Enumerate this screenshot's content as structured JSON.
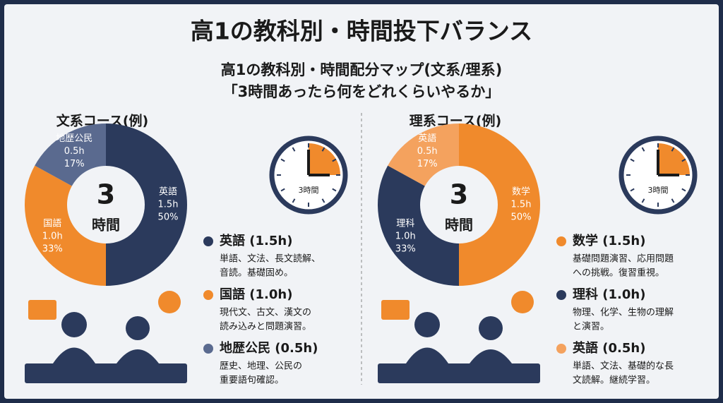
{
  "header": {
    "title": "高1の教科別・時間投下バランス",
    "subtitle_lines": [
      "高1の教科別・時間配分マップ(文系/理系)",
      "「3時間あったら何をどれくらいやるか」"
    ]
  },
  "chart_data": [
    {
      "type": "pie",
      "title": "文系コース(例)",
      "categories": [
        "英語",
        "国語",
        "地歴公民"
      ],
      "values": [
        50,
        33,
        17
      ],
      "value_labels": [
        "50%",
        "33%",
        "17%"
      ],
      "hours": [
        1.5,
        1.0,
        0.5
      ],
      "hours_labels": [
        "1.5h",
        "1.0h",
        "0.5h"
      ],
      "colors": [
        "#2b3a5c",
        "#f08a2c",
        "#5a6a8f"
      ],
      "center_value": 3,
      "center_unit": "時間",
      "clock_label": "3時間",
      "legend": [
        {
          "label": "英語 (1.5h)",
          "lines": [
            "単語、文法、長文読解、",
            "音読。基礎固め。"
          ]
        },
        {
          "label": "国語 (1.0h)",
          "lines": [
            "現代文、古文、漢文の",
            "読み込みと問題演習。"
          ]
        },
        {
          "label": "地歴公民 (0.5h)",
          "lines": [
            "歴史、地理、公民の",
            "重要語句確認。"
          ]
        }
      ]
    },
    {
      "type": "pie",
      "title": "理系コース(例)",
      "categories": [
        "数学",
        "理科",
        "英語"
      ],
      "values": [
        50,
        33,
        17
      ],
      "value_labels": [
        "50%",
        "33%",
        "17%"
      ],
      "hours": [
        1.5,
        1.0,
        0.5
      ],
      "hours_labels": [
        "1.5h",
        "1.0h",
        "0.5h"
      ],
      "colors": [
        "#f08a2c",
        "#2b3a5c",
        "#f4a25e"
      ],
      "center_value": 3,
      "center_unit": "時間",
      "clock_label": "3時間",
      "legend": [
        {
          "label": "数学 (1.5h)",
          "lines": [
            "基礎問題演習、応用問題",
            "への挑戦。復習重視。"
          ]
        },
        {
          "label": "理科 (1.0h)",
          "lines": [
            "物理、化学、生物の理解",
            "と演習。"
          ]
        },
        {
          "label": "英語 (0.5h)",
          "lines": [
            "単語、文法、基礎的な長",
            "文読解。継続学習。"
          ]
        }
      ]
    }
  ]
}
